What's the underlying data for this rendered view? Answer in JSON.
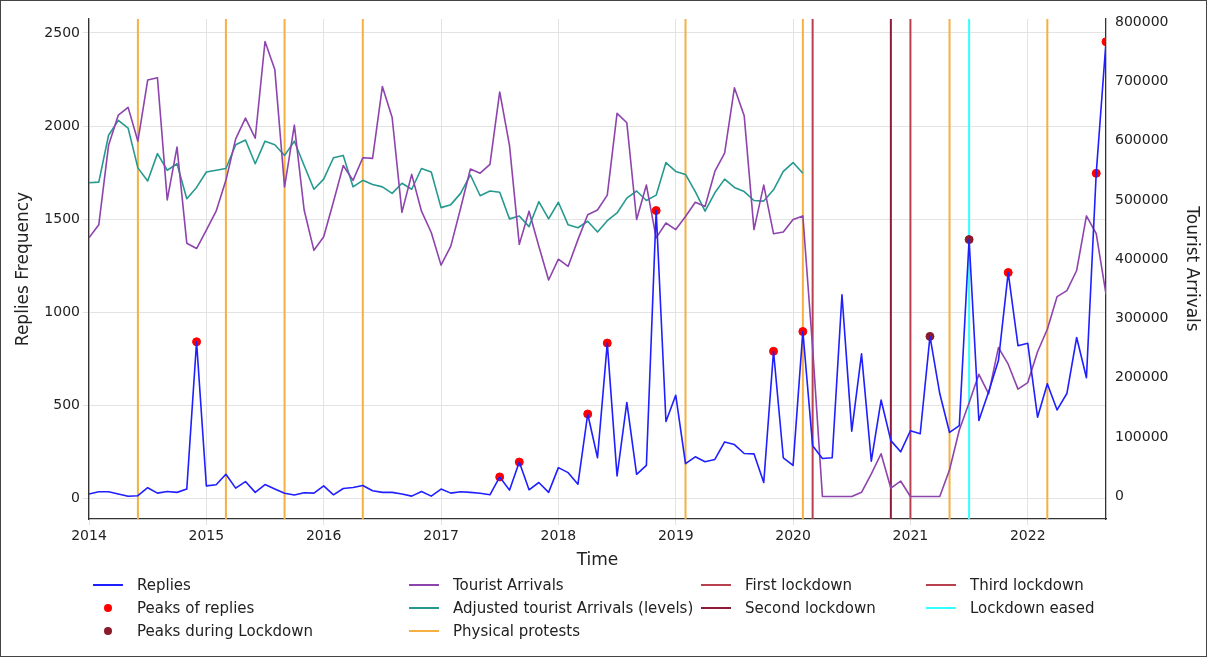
{
  "chart_data": {
    "type": "line",
    "xlabel": "Time",
    "ylabel": "Replies Frequency",
    "y2label": "Tourist Arrivals",
    "x": [
      "2014-01",
      "2014-02",
      "2014-03",
      "2014-04",
      "2014-05",
      "2014-06",
      "2014-07",
      "2014-08",
      "2014-09",
      "2014-10",
      "2014-11",
      "2014-12",
      "2015-01",
      "2015-02",
      "2015-03",
      "2015-04",
      "2015-05",
      "2015-06",
      "2015-07",
      "2015-08",
      "2015-09",
      "2015-10",
      "2015-11",
      "2015-12",
      "2016-01",
      "2016-02",
      "2016-03",
      "2016-04",
      "2016-05",
      "2016-06",
      "2016-07",
      "2016-08",
      "2016-09",
      "2016-10",
      "2016-11",
      "2016-12",
      "2017-01",
      "2017-02",
      "2017-03",
      "2017-04",
      "2017-05",
      "2017-06",
      "2017-07",
      "2017-08",
      "2017-09",
      "2017-10",
      "2017-11",
      "2017-12",
      "2018-01",
      "2018-02",
      "2018-03",
      "2018-04",
      "2018-05",
      "2018-06",
      "2018-07",
      "2018-08",
      "2018-09",
      "2018-10",
      "2018-11",
      "2018-12",
      "2019-01",
      "2019-02",
      "2019-03",
      "2019-04",
      "2019-05",
      "2019-06",
      "2019-07",
      "2019-08",
      "2019-09",
      "2019-10",
      "2019-11",
      "2019-12",
      "2020-01",
      "2020-02",
      "2020-03",
      "2020-04",
      "2020-05",
      "2020-06",
      "2020-07",
      "2020-08",
      "2020-09",
      "2020-10",
      "2020-11",
      "2020-12",
      "2021-01",
      "2021-02",
      "2021-03",
      "2021-04",
      "2021-05",
      "2021-06",
      "2021-07",
      "2021-08",
      "2021-09",
      "2021-10",
      "2021-11",
      "2021-12",
      "2022-01",
      "2022-02",
      "2022-03",
      "2022-04",
      "2022-05",
      "2022-06",
      "2022-07",
      "2022-08",
      "2022-09"
    ],
    "series": [
      {
        "name": "Replies",
        "color": "#1f1fff",
        "values": [
          23,
          35,
          35,
          23,
          11,
          14,
          57,
          28,
          37,
          32,
          50,
          841,
          67,
          73,
          129,
          55,
          90,
          32,
          74,
          50,
          27,
          18,
          30,
          28,
          67,
          19,
          53,
          58,
          69,
          41,
          32,
          32,
          23,
          12,
          37,
          12,
          50,
          28,
          35,
          32,
          27,
          19,
          115,
          44,
          195,
          46,
          85,
          32,
          165,
          138,
          76,
          453,
          218,
          834,
          120,
          515,
          129,
          177,
          1546,
          413,
          554,
          186,
          223,
          197,
          209,
          303,
          289,
          241,
          239,
          85,
          790,
          218,
          177,
          896,
          283,
          214,
          218,
          1094,
          361,
          776,
          200,
          528,
          310,
          250,
          363,
          347,
          870,
          563,
          354,
          391,
          1390,
          418,
          572,
          740,
          1213,
          820,
          833,
          436,
          616,
          475,
          563,
          864,
          648,
          1746,
          2453
        ]
      },
      {
        "name": "Peaks of replies",
        "type": "scatter",
        "marker": "circle",
        "color": "#ff0000",
        "x": [
          "2014-12",
          "2017-07",
          "2017-09",
          "2018-04",
          "2018-06",
          "2018-11",
          "2019-11",
          "2020-02",
          "2021-11",
          "2022-08",
          "2022-09"
        ],
        "values": [
          841,
          115,
          195,
          453,
          834,
          1546,
          790,
          896,
          1213,
          1746,
          2453
        ]
      },
      {
        "name": "Peaks during Lockdown",
        "type": "scatter",
        "marker": "circle",
        "color": "#8b1a2a",
        "x": [
          "2021-03",
          "2021-07"
        ],
        "values": [
          870,
          1390
        ]
      },
      {
        "name": "Tourist Arrivals",
        "axis": "y2",
        "color": "#8e44ad",
        "values": [
          436000,
          458000,
          592000,
          643000,
          656000,
          599000,
          702000,
          706000,
          500000,
          589000,
          427000,
          418000,
          449000,
          481000,
          533000,
          603000,
          638000,
          604000,
          767000,
          720000,
          522000,
          626000,
          483000,
          415000,
          438000,
          497000,
          558000,
          533000,
          571000,
          570000,
          691000,
          639000,
          479000,
          543000,
          481000,
          445000,
          390000,
          422000,
          486000,
          552000,
          545000,
          560000,
          682000,
          592000,
          425000,
          481000,
          422000,
          365000,
          400000,
          388000,
          433000,
          475000,
          483000,
          508000,
          646000,
          630000,
          467000,
          525000,
          436000,
          461000,
          450000,
          472000,
          496000,
          489000,
          548000,
          579000,
          689000,
          642000,
          450000,
          525000,
          443000,
          446000,
          467000,
          473000,
          250000,
          0,
          0,
          0,
          0,
          7000,
          38000,
          72000,
          14000,
          26000,
          0,
          0,
          0,
          0,
          45000,
          112000,
          158000,
          206000,
          173000,
          251000,
          223000,
          181000,
          192000,
          244000,
          282000,
          337000,
          347000,
          381000,
          473000,
          443000,
          341000
        ]
      },
      {
        "name": "Adjusted tourist Arrivals (levels)",
        "axis": "y2",
        "color": "#26998f",
        "values": [
          529000,
          530000,
          609000,
          634000,
          621000,
          554000,
          532000,
          578000,
          550000,
          561000,
          502000,
          521000,
          547000,
          550000,
          553000,
          593000,
          601000,
          561000,
          599000,
          593000,
          575000,
          599000,
          558000,
          518000,
          535000,
          571000,
          575000,
          522000,
          533000,
          526000,
          522000,
          511000,
          528000,
          518000,
          553000,
          547000,
          487000,
          492000,
          511000,
          542000,
          507000,
          515000,
          513000,
          468000,
          473000,
          455000,
          497000,
          468000,
          496000,
          458000,
          453000,
          464000,
          446000,
          465000,
          478000,
          503000,
          515000,
          499000,
          508000,
          563000,
          548000,
          543000,
          514000,
          481000,
          512000,
          535000,
          521000,
          514000,
          499000,
          498000,
          517000,
          548000,
          563000,
          545000,
          null,
          null,
          null,
          null,
          null,
          null,
          null,
          null,
          null,
          null,
          null,
          null,
          null,
          null,
          null,
          null,
          null,
          null,
          null,
          null,
          null,
          null,
          null,
          null,
          null,
          null,
          null,
          null,
          null,
          null,
          null
        ]
      }
    ],
    "ref_lines": [
      {
        "axis": "x",
        "value": "2014-06",
        "label": "Physical protests",
        "color": "#f5b041"
      },
      {
        "axis": "x",
        "value": "2015-03",
        "color": "#f5b041"
      },
      {
        "axis": "x",
        "value": "2015-09",
        "color": "#f5b041"
      },
      {
        "axis": "x",
        "value": "2016-05",
        "color": "#f5b041"
      },
      {
        "axis": "x",
        "value": "2019-02",
        "color": "#f5b041"
      },
      {
        "axis": "x",
        "value": "2020-02",
        "color": "#f5b041"
      },
      {
        "axis": "x",
        "value": "2021-05",
        "color": "#f5b041"
      },
      {
        "axis": "x",
        "value": "2022-03",
        "color": "#f5b041"
      },
      {
        "axis": "x",
        "value": "2020-03",
        "label": "First lockdown",
        "color": "#b8404f"
      },
      {
        "axis": "x",
        "value": "2020-11",
        "label": "Second lockdown",
        "color": "#8c1c3a"
      },
      {
        "axis": "x",
        "value": "2021-01",
        "label": "Third lockdown",
        "color": "#b8404f"
      },
      {
        "axis": "x",
        "value": "2021-07",
        "label": "Lockdown eased",
        "color": "#33ffff"
      }
    ],
    "xlim": [
      "2014-01",
      "2022-09"
    ],
    "xticks": [
      "2014",
      "2015",
      "2016",
      "2017",
      "2018",
      "2019",
      "2020",
      "2021",
      "2022"
    ],
    "ylim": [
      -111,
      2575
    ],
    "yticks": [
      0,
      500,
      1000,
      1500,
      2000,
      2500
    ],
    "y2lim": [
      -38000,
      805000
    ],
    "y2ticks": [
      0,
      100000,
      200000,
      300000,
      400000,
      500000,
      600000,
      700000,
      800000
    ],
    "grid": true,
    "legend": "bottom",
    "line_style": "solid"
  }
}
